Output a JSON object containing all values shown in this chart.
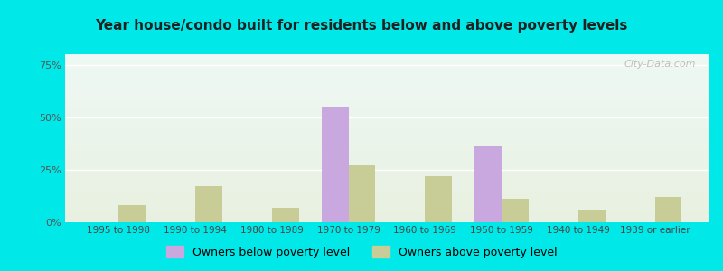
{
  "title": "Year house/condo built for residents below and above poverty levels",
  "categories": [
    "1995 to 1998",
    "1990 to 1994",
    "1980 to 1989",
    "1970 to 1979",
    "1960 to 1969",
    "1950 to 1959",
    "1940 to 1949",
    "1939 or earlier"
  ],
  "below_poverty": [
    0,
    0,
    0,
    55,
    0,
    36,
    0,
    0
  ],
  "above_poverty": [
    8,
    17,
    7,
    27,
    22,
    11,
    6,
    12
  ],
  "below_color": "#c9a8e0",
  "above_color": "#c8cc96",
  "yticks": [
    0,
    25,
    50,
    75
  ],
  "ylim": [
    0,
    80
  ],
  "legend_below": "Owners below poverty level",
  "legend_above": "Owners above poverty level",
  "background_outer": "#00e8e8",
  "background_inner_top": "#eef8f4",
  "background_inner_bottom": "#e8f0e0",
  "watermark": "City-Data.com",
  "bar_width": 0.35
}
